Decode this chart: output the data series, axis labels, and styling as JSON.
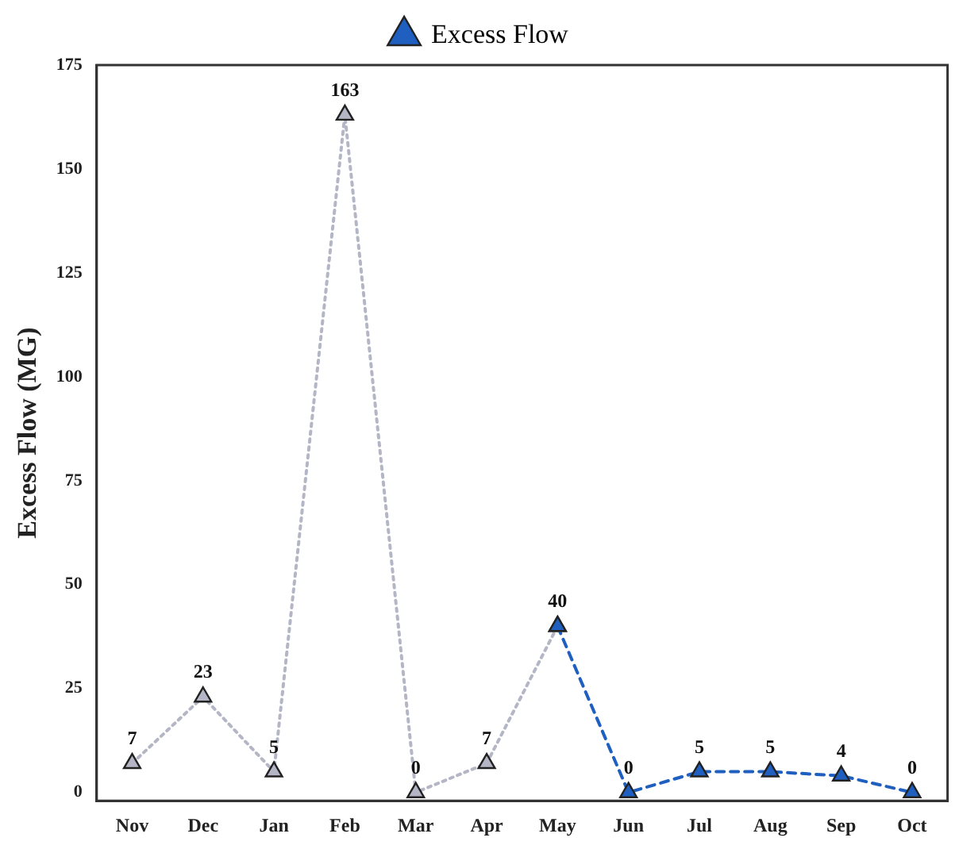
{
  "chart_data": {
    "type": "line",
    "ylabel": "Excess Flow (MG)",
    "categories": [
      "Nov",
      "Dec",
      "Jan",
      "Feb",
      "Mar",
      "Apr",
      "May",
      "Jun",
      "Jul",
      "Aug",
      "Sep",
      "Oct"
    ],
    "series": [
      {
        "color": "#b4b6c6",
        "line_style": "dotted",
        "values": [
          7,
          23,
          5,
          163,
          0,
          7,
          40,
          null,
          null,
          null,
          null,
          null
        ],
        "value_labels": [
          "7",
          "23",
          "5",
          "163",
          "0",
          "7",
          null,
          null,
          null,
          null,
          null,
          null
        ]
      },
      {
        "name": "Excess Flow",
        "color": "#1f5fbf",
        "values": [
          null,
          null,
          null,
          null,
          null,
          null,
          40,
          0,
          5,
          5,
          4,
          0
        ],
        "value_labels": [
          null,
          null,
          null,
          null,
          null,
          null,
          "40",
          "0",
          "5",
          "5",
          "4",
          "0"
        ]
      }
    ],
    "ylim": [
      -2,
      175
    ],
    "yticks": [
      0,
      25,
      50,
      75,
      100,
      125,
      150,
      175
    ],
    "grid": false,
    "legend": "top",
    "marker": "triangle",
    "line_style": "dashed"
  }
}
